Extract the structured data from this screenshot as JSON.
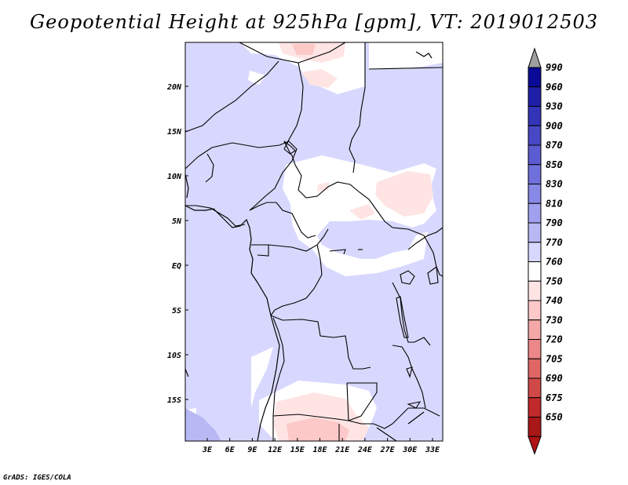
{
  "title": "Geopotential Height at 925hPa [gpm], VT: 2019012503",
  "credit": "GrADS: IGES/COLA",
  "map": {
    "lat_labels": [
      "20N",
      "15N",
      "10N",
      "5N",
      "EQ",
      "5S",
      "10S",
      "15S"
    ],
    "lon_labels": [
      "3E",
      "6E",
      "9E",
      "12E",
      "15E",
      "18E",
      "21E",
      "24E",
      "27E",
      "30E",
      "33E"
    ],
    "background_color": "#d8d8ff"
  },
  "colorbar": {
    "levels": [
      "990",
      "960",
      "930",
      "900",
      "870",
      "850",
      "830",
      "810",
      "790",
      "770",
      "760",
      "750",
      "740",
      "730",
      "720",
      "705",
      "690",
      "675",
      "650"
    ],
    "colors": [
      "#0a0a96",
      "#1f1fa8",
      "#3434b8",
      "#4848c6",
      "#5c5cd2",
      "#7070dc",
      "#8888e6",
      "#a0a0ee",
      "#b8b8f4",
      "#d8d8ff",
      "#ffffff",
      "#ffe4e4",
      "#fcc8c8",
      "#f4a8a8",
      "#ec8888",
      "#e06666",
      "#d04848",
      "#c02a2a",
      "#a81818"
    ],
    "top_arrow_color": "#a0a0a0",
    "bottom_arrow_color": "#b01414"
  }
}
